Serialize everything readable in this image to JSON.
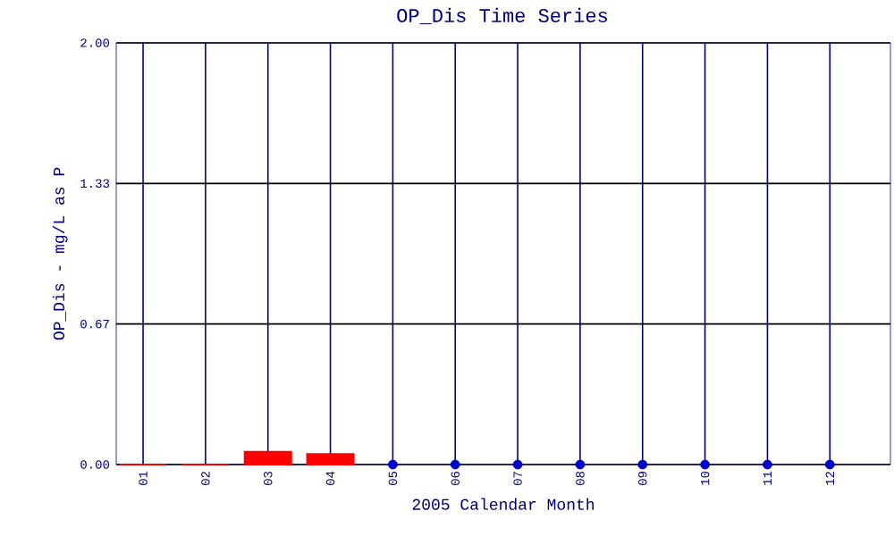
{
  "chart_data": {
    "type": "bar",
    "title": "OP_Dis Time Series",
    "xlabel": "2005 Calendar Month",
    "ylabel": "OP_Dis - mg/L as P",
    "categories": [
      "01",
      "02",
      "03",
      "04",
      "05",
      "06",
      "07",
      "08",
      "09",
      "10",
      "11",
      "12"
    ],
    "series": [
      {
        "color": "#ff0000",
        "values": [
          0,
          0,
          0.06,
          0.05,
          null,
          null,
          null,
          null,
          null,
          null,
          null,
          null
        ]
      },
      {
        "type": "scatter",
        "color": "#0000cc",
        "values": [
          null,
          null,
          null,
          null,
          0,
          0,
          0,
          0,
          0,
          0,
          0,
          0
        ]
      }
    ],
    "ylim": [
      0,
      2
    ],
    "yticks": [
      {
        "value": 0,
        "label": "0.00"
      },
      {
        "value": 0.6667,
        "label": "0.67"
      },
      {
        "value": 1.3333,
        "label": "1.33"
      },
      {
        "value": 2,
        "label": "2.00"
      }
    ],
    "grid": true,
    "marker": "circle"
  }
}
